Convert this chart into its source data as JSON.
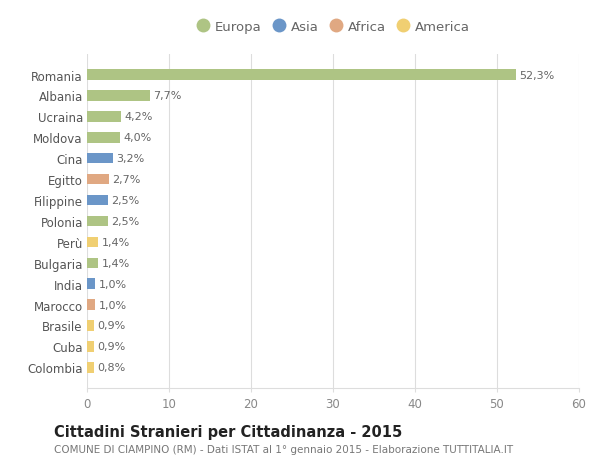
{
  "countries": [
    "Romania",
    "Albania",
    "Ucraina",
    "Moldova",
    "Cina",
    "Egitto",
    "Filippine",
    "Polonia",
    "Perù",
    "Bulgaria",
    "India",
    "Marocco",
    "Brasile",
    "Cuba",
    "Colombia"
  ],
  "values": [
    52.3,
    7.7,
    4.2,
    4.0,
    3.2,
    2.7,
    2.5,
    2.5,
    1.4,
    1.4,
    1.0,
    1.0,
    0.9,
    0.9,
    0.8
  ],
  "labels": [
    "52,3%",
    "7,7%",
    "4,2%",
    "4,0%",
    "3,2%",
    "2,7%",
    "2,5%",
    "2,5%",
    "1,4%",
    "1,4%",
    "1,0%",
    "1,0%",
    "0,9%",
    "0,9%",
    "0,8%"
  ],
  "continents": [
    "Europa",
    "Europa",
    "Europa",
    "Europa",
    "Asia",
    "Africa",
    "Asia",
    "Europa",
    "America",
    "Europa",
    "Asia",
    "Africa",
    "America",
    "America",
    "America"
  ],
  "continent_colors": {
    "Europa": "#aec484",
    "Asia": "#6b96c8",
    "Africa": "#e0a882",
    "America": "#f0cf72"
  },
  "legend_order": [
    "Europa",
    "Asia",
    "Africa",
    "America"
  ],
  "xlim": [
    0,
    60
  ],
  "xticks": [
    0,
    10,
    20,
    30,
    40,
    50,
    60
  ],
  "title": "Cittadini Stranieri per Cittadinanza - 2015",
  "subtitle": "COMUNE DI CIAMPINO (RM) - Dati ISTAT al 1° gennaio 2015 - Elaborazione TUTTITALIA.IT",
  "bg_color": "#ffffff",
  "grid_color": "#dddddd",
  "bar_height": 0.5,
  "label_fontsize": 8.0,
  "ytick_fontsize": 8.5,
  "xtick_fontsize": 8.5,
  "title_fontsize": 10.5,
  "subtitle_fontsize": 7.5
}
